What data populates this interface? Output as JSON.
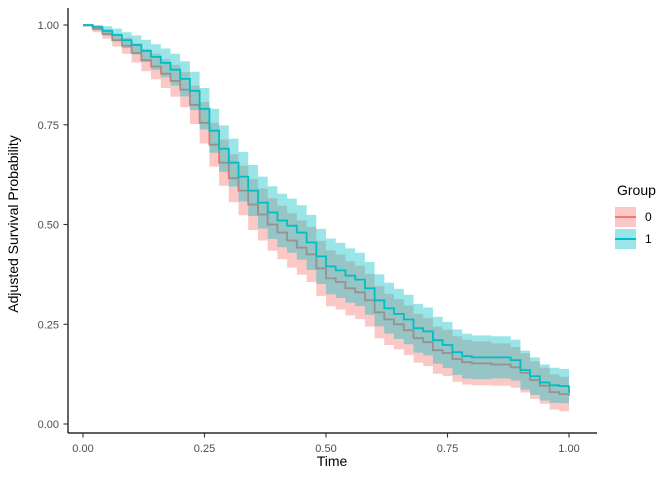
{
  "chart_data": {
    "type": "line",
    "variant": "step-survival-curves-with-confidence-ribbons",
    "title": "",
    "xlabel": "Time",
    "ylabel": "Adjusted Survival Probability",
    "xlim": [
      0,
      1
    ],
    "ylim": [
      0,
      1
    ],
    "grid": false,
    "background": "#ffffff",
    "axis_color": "#000000",
    "tick_label_color": "#4d4d4d",
    "legend_position": "right",
    "legend_title": "Group",
    "x_ticks": {
      "values": [
        0,
        0.25,
        0.5,
        0.75,
        1
      ],
      "labels": [
        "0.00",
        "0.25",
        "0.50",
        "0.75",
        "1.00"
      ]
    },
    "y_ticks": {
      "values": [
        0,
        0.25,
        0.5,
        0.75,
        1
      ],
      "labels": [
        "0.00",
        "0.25",
        "0.50",
        "0.75",
        "1.00"
      ]
    },
    "ribbon_alpha": 0.4,
    "series": [
      {
        "name": "0",
        "color": "#F8766D",
        "t": [
          0,
          0.02,
          0.04,
          0.06,
          0.08,
          0.1,
          0.12,
          0.14,
          0.16,
          0.18,
          0.2,
          0.22,
          0.24,
          0.26,
          0.28,
          0.3,
          0.32,
          0.34,
          0.36,
          0.38,
          0.4,
          0.42,
          0.44,
          0.46,
          0.48,
          0.5,
          0.52,
          0.54,
          0.56,
          0.58,
          0.6,
          0.62,
          0.64,
          0.66,
          0.68,
          0.7,
          0.72,
          0.74,
          0.76,
          0.78,
          0.8,
          0.84,
          0.88,
          0.9,
          0.92,
          0.94,
          0.96,
          0.98,
          1.0
        ],
        "p": [
          1.0,
          0.99,
          0.978,
          0.962,
          0.948,
          0.93,
          0.912,
          0.896,
          0.878,
          0.86,
          0.838,
          0.8,
          0.755,
          0.7,
          0.655,
          0.616,
          0.585,
          0.55,
          0.525,
          0.5,
          0.48,
          0.46,
          0.442,
          0.425,
          0.39,
          0.365,
          0.356,
          0.34,
          0.33,
          0.31,
          0.28,
          0.262,
          0.25,
          0.235,
          0.215,
          0.205,
          0.185,
          0.178,
          0.163,
          0.155,
          0.152,
          0.149,
          0.142,
          0.128,
          0.11,
          0.096,
          0.08,
          0.075,
          0.071
        ],
        "ci_halfwidth": [
          0.004,
          0.008,
          0.012,
          0.016,
          0.02,
          0.024,
          0.028,
          0.032,
          0.036,
          0.04,
          0.044,
          0.048,
          0.052,
          0.055,
          0.058,
          0.06,
          0.062,
          0.064,
          0.065,
          0.066,
          0.067,
          0.068,
          0.068,
          0.069,
          0.069,
          0.07,
          0.069,
          0.068,
          0.067,
          0.066,
          0.065,
          0.064,
          0.063,
          0.062,
          0.061,
          0.06,
          0.059,
          0.058,
          0.057,
          0.056,
          0.055,
          0.053,
          0.051,
          0.049,
          0.047,
          0.045,
          0.044,
          0.043,
          0.042
        ]
      },
      {
        "name": "1",
        "color": "#00BFC4",
        "t": [
          0,
          0.02,
          0.04,
          0.06,
          0.08,
          0.1,
          0.12,
          0.14,
          0.16,
          0.18,
          0.2,
          0.22,
          0.24,
          0.26,
          0.28,
          0.3,
          0.32,
          0.34,
          0.36,
          0.38,
          0.4,
          0.42,
          0.44,
          0.46,
          0.48,
          0.5,
          0.52,
          0.54,
          0.56,
          0.58,
          0.6,
          0.62,
          0.64,
          0.66,
          0.68,
          0.7,
          0.72,
          0.74,
          0.76,
          0.78,
          0.8,
          0.84,
          0.88,
          0.9,
          0.92,
          0.94,
          0.96,
          0.98,
          1.0
        ],
        "p": [
          1.0,
          0.995,
          0.985,
          0.975,
          0.962,
          0.95,
          0.935,
          0.92,
          0.905,
          0.888,
          0.865,
          0.835,
          0.79,
          0.735,
          0.69,
          0.655,
          0.62,
          0.585,
          0.555,
          0.53,
          0.51,
          0.497,
          0.48,
          0.455,
          0.42,
          0.395,
          0.385,
          0.372,
          0.362,
          0.34,
          0.31,
          0.29,
          0.276,
          0.262,
          0.24,
          0.232,
          0.21,
          0.198,
          0.18,
          0.17,
          0.167,
          0.167,
          0.16,
          0.135,
          0.12,
          0.104,
          0.097,
          0.095,
          0.078
        ],
        "ci_halfwidth": [
          0.004,
          0.008,
          0.012,
          0.016,
          0.02,
          0.024,
          0.028,
          0.032,
          0.036,
          0.04,
          0.044,
          0.048,
          0.052,
          0.055,
          0.058,
          0.06,
          0.062,
          0.064,
          0.065,
          0.066,
          0.067,
          0.068,
          0.068,
          0.069,
          0.069,
          0.07,
          0.069,
          0.068,
          0.067,
          0.066,
          0.065,
          0.064,
          0.063,
          0.062,
          0.061,
          0.06,
          0.059,
          0.058,
          0.057,
          0.056,
          0.055,
          0.053,
          0.051,
          0.049,
          0.047,
          0.045,
          0.044,
          0.043,
          0.042
        ]
      }
    ]
  }
}
